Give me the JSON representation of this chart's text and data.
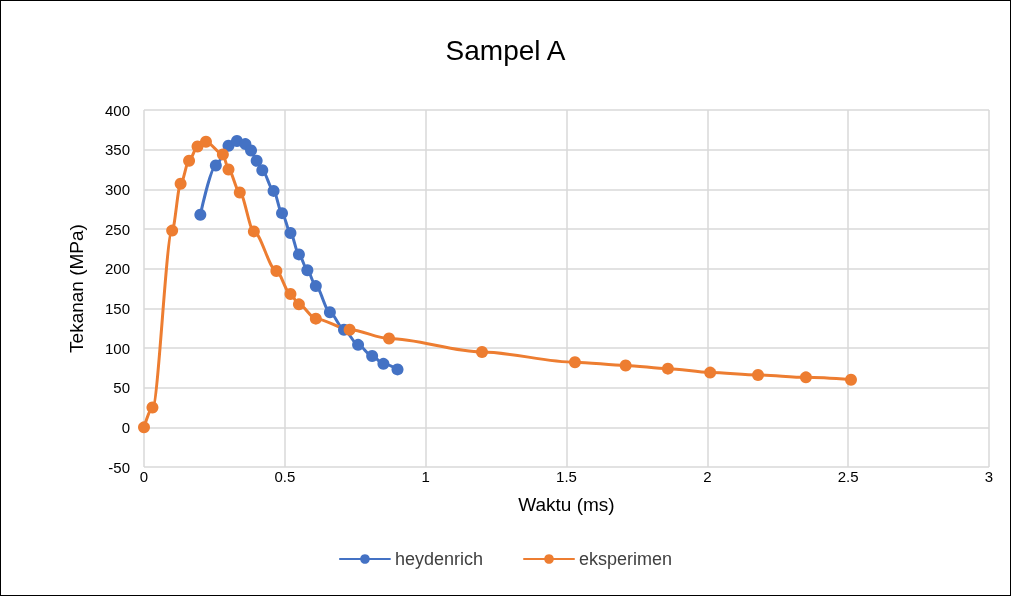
{
  "chart_data": {
    "type": "line",
    "title": "Sampel A",
    "xlabel": "Waktu (ms)",
    "ylabel": "Tekanan (MPa)",
    "xlim": [
      0,
      3
    ],
    "xticks": [
      0,
      0.5,
      1,
      1.5,
      2,
      2.5,
      3
    ],
    "ylim": [
      -50,
      400
    ],
    "yticks": [
      -50,
      0,
      50,
      100,
      150,
      200,
      250,
      300,
      350,
      400
    ],
    "grid": true,
    "legend": "bottom",
    "marker": "circle",
    "line_style": "solid",
    "series": [
      {
        "name": "heydenrich",
        "color": "#4472c4",
        "x": [
          0.2,
          0.255,
          0.3,
          0.33,
          0.36,
          0.38,
          0.4,
          0.42,
          0.46,
          0.49,
          0.52,
          0.55,
          0.58,
          0.61,
          0.66,
          0.71,
          0.76,
          0.81,
          0.85,
          0.9
        ],
        "values": [
          268,
          330,
          355,
          361,
          357,
          349,
          336,
          324,
          298,
          270,
          245,
          218,
          198,
          178,
          145,
          123,
          104,
          90,
          80,
          73
        ]
      },
      {
        "name": "eksperimen",
        "color": "#ed7d31",
        "x": [
          0,
          0.03,
          0.1,
          0.13,
          0.16,
          0.19,
          0.22,
          0.28,
          0.3,
          0.34,
          0.39,
          0.47,
          0.52,
          0.55,
          0.61,
          0.73,
          0.87,
          1.2,
          1.53,
          1.71,
          1.86,
          2.01,
          2.18,
          2.35,
          2.51
        ],
        "values": [
          0,
          25,
          248,
          307,
          336,
          354,
          360,
          344,
          325,
          296,
          247,
          197,
          168,
          155,
          137,
          123,
          112,
          95,
          82,
          78,
          74,
          69,
          66,
          63,
          60
        ]
      }
    ]
  }
}
